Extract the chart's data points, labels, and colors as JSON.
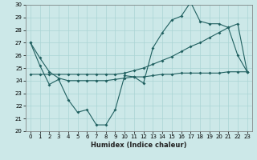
{
  "xlabel": "Humidex (Indice chaleur)",
  "x": [
    0,
    1,
    2,
    3,
    4,
    5,
    6,
    7,
    8,
    9,
    10,
    11,
    12,
    13,
    14,
    15,
    16,
    17,
    18,
    19,
    20,
    21,
    22,
    23
  ],
  "line1": [
    27.0,
    25.2,
    23.7,
    24.1,
    22.5,
    21.5,
    21.7,
    20.5,
    20.5,
    21.7,
    24.4,
    24.3,
    23.8,
    26.6,
    27.8,
    28.8,
    29.1,
    30.2,
    28.7,
    28.5,
    28.5,
    28.2,
    26.0,
    24.7
  ],
  "line2": [
    27.0,
    25.8,
    24.7,
    24.2,
    24.0,
    24.0,
    24.0,
    24.0,
    24.0,
    24.1,
    24.2,
    24.3,
    24.3,
    24.4,
    24.5,
    24.5,
    24.6,
    24.6,
    24.6,
    24.6,
    24.6,
    24.7,
    24.7,
    24.7
  ],
  "line3": [
    24.5,
    24.5,
    24.5,
    24.5,
    24.5,
    24.5,
    24.5,
    24.5,
    24.5,
    24.5,
    24.6,
    24.8,
    25.0,
    25.3,
    25.6,
    25.9,
    26.3,
    26.7,
    27.0,
    27.4,
    27.8,
    28.2,
    28.5,
    24.7
  ],
  "color": "#206060",
  "bg_color": "#cce8e8",
  "grid_color": "#aad4d4",
  "ylim": [
    20,
    30
  ],
  "xlim": [
    -0.5,
    23.5
  ],
  "yticks": [
    20,
    21,
    22,
    23,
    24,
    25,
    26,
    27,
    28,
    29,
    30
  ],
  "xticks": [
    0,
    1,
    2,
    3,
    4,
    5,
    6,
    7,
    8,
    9,
    10,
    11,
    12,
    13,
    14,
    15,
    16,
    17,
    18,
    19,
    20,
    21,
    22,
    23
  ],
  "tick_fontsize": 5,
  "xlabel_fontsize": 6
}
